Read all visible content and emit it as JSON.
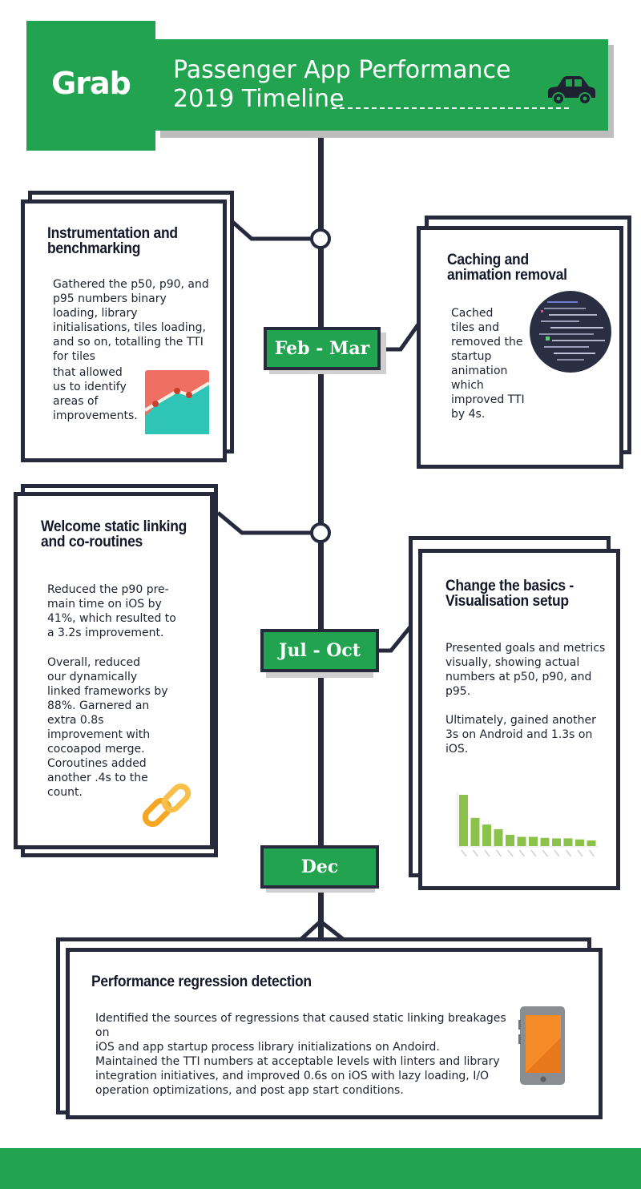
{
  "header": {
    "logo_text": "Grab",
    "title_line1": "Passenger App Performance",
    "title_line2": "2019 Timeline",
    "icon": "car-icon"
  },
  "periods": [
    {
      "label": "Feb - Mar"
    },
    {
      "label": "Jul - Oct"
    },
    {
      "label": "Dec"
    }
  ],
  "cards": {
    "instrumentation": {
      "title": "Instrumentation and benchmarking",
      "body_top": "Gathered the p50, p90, and p95 numbers binary loading, library initialisations, tiles loading, and so on, totalling the TTI for tiles",
      "body_bottom": "that allowed\nus to identify\nareas of\nimprovements.",
      "icon": "line-chart-icon"
    },
    "caching": {
      "title": "Caching and animation removal",
      "body": "Cached\ntiles and\nremoved the\nstartup\nanimation\nwhich\nimproved TTI\nby 4s.",
      "icon": "code-screen-icon"
    },
    "static_linking": {
      "title": "Welcome static linking and co-routines",
      "body_1": "Reduced the p90 pre-\nmain time on iOS by\n41%, which resulted to\na 3.2s improvement.",
      "body_2": "Overall, reduced\nour dynamically\nlinked frameworks by\n88%. Garnered an\nextra 0.8s\nimprovement with\ncocoapod merge.\nCoroutines added\nanother .4s to the\ncount.",
      "icon": "chain-link-icon"
    },
    "basics": {
      "title": "Change the basics - Visualisation setup",
      "body_1": "Presented goals and metrics\nvisually, showing actual\nnumbers at p50, p90, and\np95.",
      "body_2": "Ultimately, gained another\n3s on Android and 1.3s on\niOS.",
      "icon": "bar-chart-icon"
    },
    "regression": {
      "title": "Performance regression detection",
      "body_1": "Identified the sources of regressions that caused static linking breakages on\niOS and app startup process library initializations on Andoird.",
      "body_2": "Maintained the TTI numbers at acceptable levels with linters and library\nintegration initiatives, and improved 0.6s on iOS with lazy loading, I/O\noperation optimizations, and post app start conditions.",
      "icon": "smartphone-icon"
    }
  },
  "mini_bar_chart": {
    "values": [
      100,
      55,
      42,
      33,
      22,
      18,
      18,
      16,
      15,
      15,
      13,
      11
    ],
    "color": "#8bc34a"
  },
  "colors": {
    "brand_green": "#22a34f",
    "navy": "#272a3c"
  }
}
